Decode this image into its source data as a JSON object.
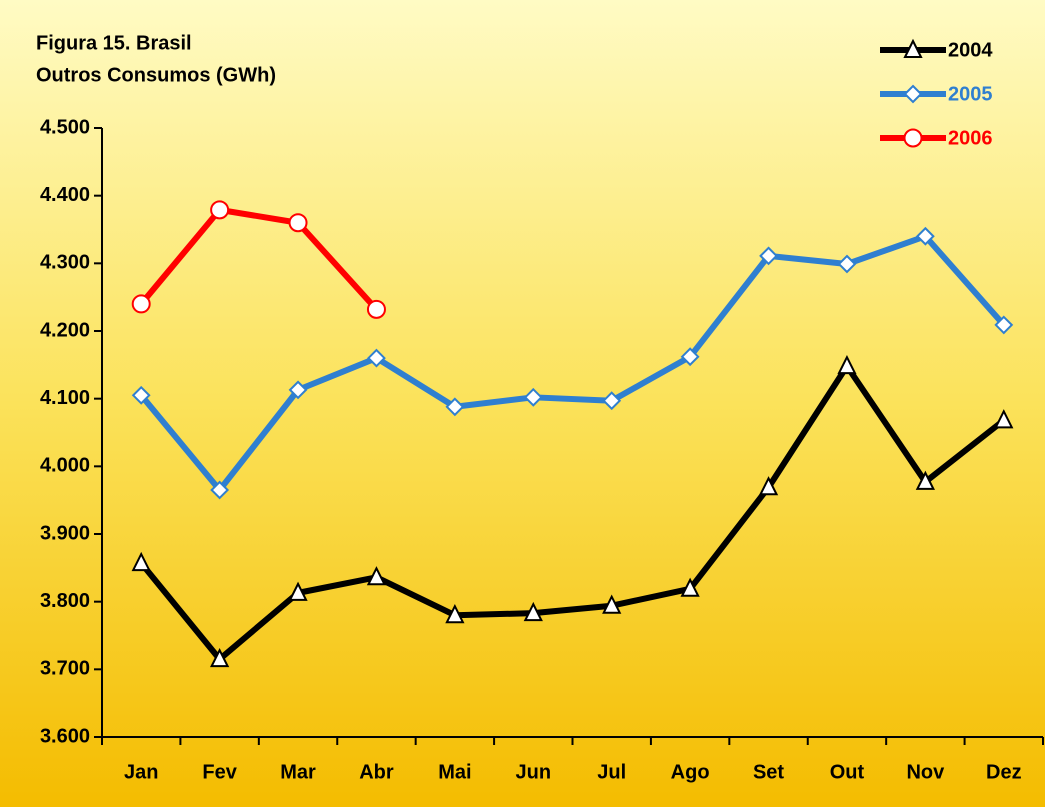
{
  "chart_data": {
    "type": "line",
    "title": "Figura 15. Brasil",
    "subtitle": "Outros Consumos (GWh)",
    "categories": [
      "Jan",
      "Fev",
      "Mar",
      "Abr",
      "Mai",
      "Jun",
      "Jul",
      "Ago",
      "Set",
      "Out",
      "Nov",
      "Dez"
    ],
    "series": [
      {
        "name": "2004",
        "color": "#000000",
        "marker": "triangle",
        "values": [
          3857,
          3715,
          3813,
          3836,
          3780,
          3783,
          3794,
          3819,
          3969,
          4148,
          3977,
          4068
        ]
      },
      {
        "name": "2005",
        "color": "#2f7fd0",
        "marker": "diamond",
        "values": [
          4105,
          3965,
          4113,
          4160,
          4088,
          4102,
          4097,
          4162,
          4311,
          4299,
          4340,
          4209
        ]
      },
      {
        "name": "2006",
        "color": "#ff0000",
        "marker": "circle",
        "values": [
          4240,
          4379,
          4360,
          4232,
          null,
          null,
          null,
          null,
          null,
          null,
          null,
          null
        ]
      }
    ],
    "ylim": [
      3600,
      4500
    ],
    "yticks": [
      {
        "value": 3600,
        "label": "3.600"
      },
      {
        "value": 3700,
        "label": "3.700"
      },
      {
        "value": 3800,
        "label": "3.800"
      },
      {
        "value": 3900,
        "label": "3.900"
      },
      {
        "value": 4000,
        "label": "4.000"
      },
      {
        "value": 4100,
        "label": "4.100"
      },
      {
        "value": 4200,
        "label": "4.200"
      },
      {
        "value": 4300,
        "label": "4.300"
      },
      {
        "value": 4400,
        "label": "4.400"
      },
      {
        "value": 4500,
        "label": "4.500"
      }
    ],
    "grid": false,
    "legend": "top-right"
  }
}
